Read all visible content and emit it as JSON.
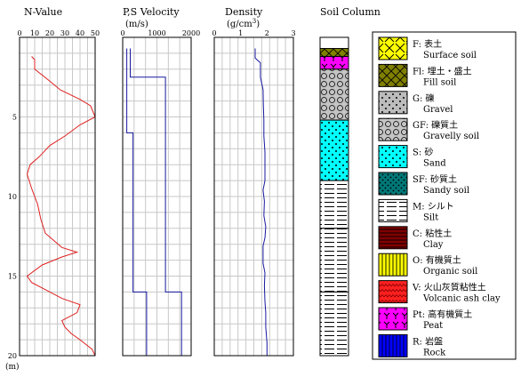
{
  "chart_data": [
    {
      "type": "line",
      "title": "N-Value",
      "depth_unit": "(m)",
      "xlim": [
        0,
        50
      ],
      "x_ticks": [
        0,
        10,
        20,
        30,
        40,
        50
      ],
      "ylim": [
        0,
        20
      ],
      "y_ticks": [
        5,
        10,
        15,
        20
      ],
      "grid": true,
      "series": [
        {
          "color": "#e02020",
          "points": [
            [
              8,
              1.2
            ],
            [
              10,
              1.4
            ],
            [
              10,
              2.0
            ],
            [
              18,
              2.6
            ],
            [
              27,
              3.3
            ],
            [
              40,
              3.9
            ],
            [
              47,
              4.3
            ],
            [
              50,
              5.0
            ],
            [
              40,
              5.5
            ],
            [
              30,
              6.2
            ],
            [
              20,
              6.8
            ],
            [
              13,
              7.5
            ],
            [
              7,
              8.0
            ],
            [
              5,
              8.6
            ],
            [
              8,
              9.5
            ],
            [
              12,
              10.5
            ],
            [
              14,
              11.4
            ],
            [
              17,
              12.3
            ],
            [
              28,
              13.2
            ],
            [
              38,
              13.5
            ],
            [
              28,
              13.8
            ],
            [
              15,
              14.3
            ],
            [
              5,
              15.0
            ],
            [
              8,
              15.4
            ],
            [
              18,
              15.9
            ],
            [
              28,
              16.4
            ],
            [
              40,
              16.8
            ],
            [
              38,
              17.3
            ],
            [
              28,
              17.8
            ],
            [
              30,
              18.2
            ],
            [
              34,
              18.6
            ],
            [
              40,
              19.0
            ],
            [
              48,
              19.6
            ],
            [
              50,
              20
            ]
          ]
        }
      ]
    },
    {
      "type": "line",
      "title": "P,S Velocity",
      "unit_label": "(m/s)",
      "xlim": [
        0,
        2000
      ],
      "x_ticks": [
        0,
        1000,
        2000
      ],
      "ylim": [
        0,
        20
      ],
      "grid": true,
      "series": [
        {
          "color": "#1818a0",
          "points": [
            [
              220,
              0.7
            ],
            [
              220,
              2.5
            ],
            [
              1250,
              2.5
            ],
            [
              1250,
              16
            ],
            [
              1720,
              16
            ],
            [
              1720,
              20
            ]
          ]
        },
        {
          "color": "#1818a0",
          "points": [
            [
              120,
              0.7
            ],
            [
              120,
              6
            ],
            [
              300,
              6
            ],
            [
              300,
              16
            ],
            [
              700,
              16
            ],
            [
              700,
              20
            ]
          ]
        }
      ]
    },
    {
      "type": "line",
      "title": "Density",
      "unit_label": "(g/cm^3)",
      "xlim": [
        0,
        3
      ],
      "x_ticks": [
        0,
        1,
        2,
        3
      ],
      "ylim": [
        0,
        20
      ],
      "grid": true,
      "series": [
        {
          "color": "#1818a0",
          "points": [
            [
              1.55,
              0.7
            ],
            [
              1.55,
              1.3
            ],
            [
              1.75,
              1.6
            ],
            [
              1.75,
              2.5
            ],
            [
              1.85,
              3.3
            ],
            [
              1.86,
              4.2
            ],
            [
              1.88,
              5.2
            ],
            [
              1.88,
              6.2
            ],
            [
              1.92,
              7.2
            ],
            [
              1.92,
              9.0
            ],
            [
              1.85,
              9.6
            ],
            [
              1.9,
              10.3
            ],
            [
              1.88,
              11.2
            ],
            [
              1.95,
              11.9
            ],
            [
              1.92,
              12.6
            ],
            [
              1.85,
              13.1
            ],
            [
              1.85,
              14.2
            ],
            [
              1.92,
              14.8
            ],
            [
              1.9,
              15.6
            ],
            [
              1.92,
              16.6
            ],
            [
              1.95,
              17.3
            ],
            [
              1.95,
              18.2
            ],
            [
              2.0,
              19.2
            ],
            [
              2.0,
              20
            ]
          ]
        }
      ]
    }
  ],
  "soil_column": {
    "title": "Soil Column",
    "layers": [
      {
        "code": "Fl",
        "top": 0.7,
        "bottom": 1.2
      },
      {
        "code": "Pt",
        "top": 1.2,
        "bottom": 2.0
      },
      {
        "code": "GF",
        "top": 2.0,
        "bottom": 5.2
      },
      {
        "code": "S",
        "top": 5.2,
        "bottom": 9.0
      },
      {
        "code": "M",
        "top": 9.0,
        "bottom": 12.0
      },
      {
        "code": "M",
        "top": 12.0,
        "bottom": 16.0
      },
      {
        "code": "M",
        "top": 16.0,
        "bottom": 20.0
      }
    ]
  },
  "legend": [
    {
      "code": "F",
      "label": "F: 表土",
      "english": "Surface soil",
      "pattern": "surface"
    },
    {
      "code": "Fl",
      "label": "Fl: 埋土・盛土",
      "english": "Fill soil",
      "pattern": "fill"
    },
    {
      "code": "G",
      "label": "G: 礫",
      "english": "Gravel",
      "pattern": "gravel"
    },
    {
      "code": "GF",
      "label": "GF: 礫質土",
      "english": "Gravelly soil",
      "pattern": "gravelly"
    },
    {
      "code": "S",
      "label": "S: 砂",
      "english": "Sand",
      "pattern": "sand"
    },
    {
      "code": "SF",
      "label": "SF: 砂質土",
      "english": "Sandy soil",
      "pattern": "sandy"
    },
    {
      "code": "M",
      "label": "M: シルト",
      "english": "Silt",
      "pattern": "silt"
    },
    {
      "code": "C",
      "label": "C: 粘性土",
      "english": "Clay",
      "pattern": "clay"
    },
    {
      "code": "O",
      "label": "O: 有機質土",
      "english": "Organic soil",
      "pattern": "organic"
    },
    {
      "code": "V",
      "label": "V: 火山灰質粘性土",
      "english": "Volcanic ash clay",
      "pattern": "volcanic"
    },
    {
      "code": "Pt",
      "label": "Pt: 高有機質土",
      "english": "Peat",
      "pattern": "peat"
    },
    {
      "code": "R",
      "label": "R: 岩盤",
      "english": "Rock",
      "pattern": "rock"
    }
  ],
  "colors": {
    "n_value_line": "#e02020",
    "velocity_line": "#1818a0",
    "density_line": "#1818a0",
    "grid": "#c8c8c8"
  }
}
